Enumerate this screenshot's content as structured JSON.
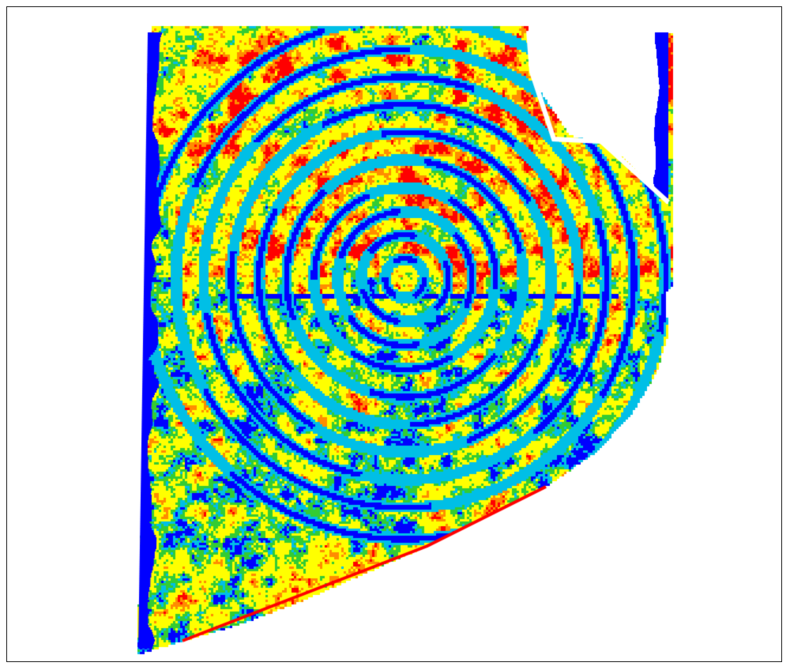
{
  "map": {
    "type": "field yield map (pixel raster, center-pivot irrigation pattern)",
    "legend_visible": false,
    "palette": {
      "blue": "#0000ff",
      "cyan": "#00bfe6",
      "green": "#33cc33",
      "yellow": "#ffff00",
      "orange": "#ff8c00",
      "red": "#ff0000",
      "background": "#ffffff"
    },
    "value_classes": [
      "blue",
      "cyan",
      "green",
      "yellow",
      "orange",
      "red"
    ]
  }
}
